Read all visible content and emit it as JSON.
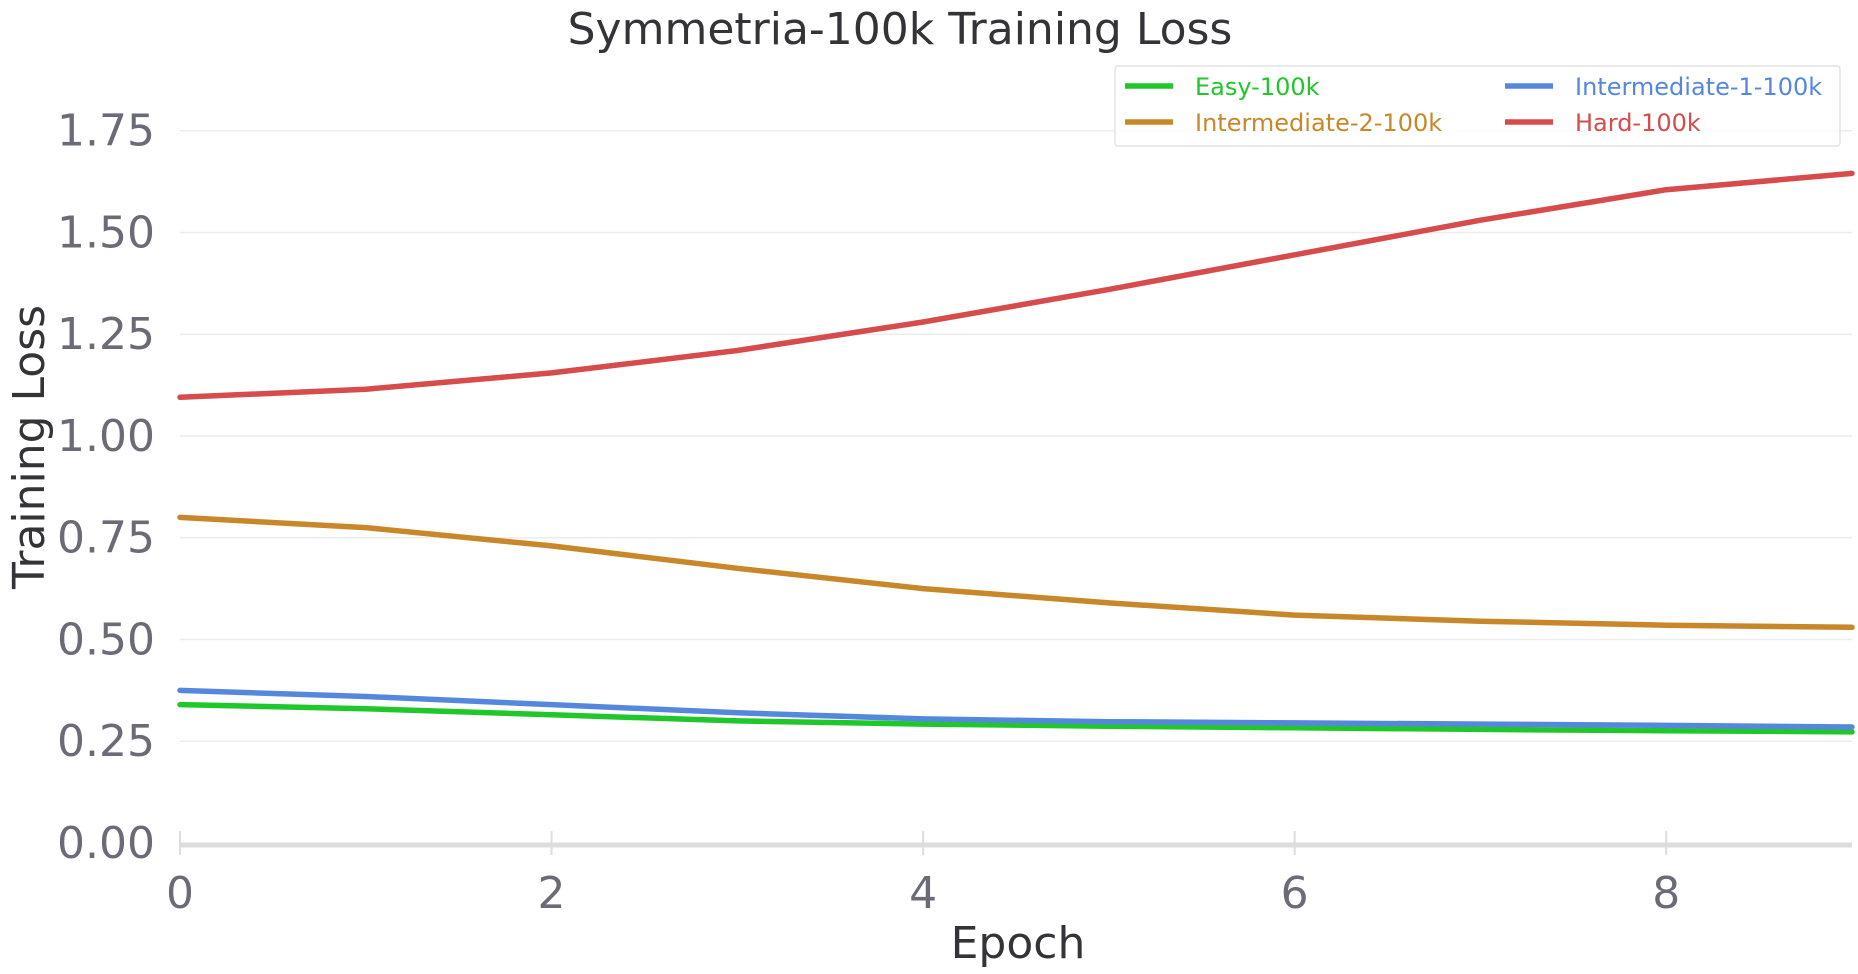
{
  "chart_data": {
    "type": "line",
    "title": "Symmetria-100k Training Loss",
    "xlabel": "Epoch",
    "ylabel": "Training Loss",
    "xlim": [
      0,
      9
    ],
    "ylim": [
      0,
      1.85
    ],
    "xticks": [
      0,
      2,
      4,
      6,
      8
    ],
    "xtick_labels": [
      "0",
      "2",
      "4",
      "6",
      "8"
    ],
    "yticks": [
      0,
      0.25,
      0.5,
      0.75,
      1.0,
      1.25,
      1.5,
      1.75
    ],
    "ytick_labels": [
      "0.00",
      "0.25",
      "0.50",
      "0.75",
      "1.00",
      "1.25",
      "1.50",
      "1.75"
    ],
    "grid": true,
    "legend_position": "top-right",
    "x": [
      0,
      1,
      2,
      3,
      4,
      5,
      6,
      7,
      8,
      9
    ],
    "series": [
      {
        "name": "Easy-100k",
        "color": "#1fc72a",
        "values": [
          0.34,
          0.33,
          0.315,
          0.3,
          0.292,
          0.287,
          0.283,
          0.279,
          0.276,
          0.273
        ]
      },
      {
        "name": "Intermediate-1-100k",
        "color": "#5588dd",
        "values": [
          0.375,
          0.36,
          0.34,
          0.32,
          0.305,
          0.298,
          0.295,
          0.292,
          0.289,
          0.285
        ]
      },
      {
        "name": "Intermediate-2-100k",
        "color": "#c8882a",
        "values": [
          0.8,
          0.775,
          0.73,
          0.675,
          0.625,
          0.59,
          0.56,
          0.545,
          0.535,
          0.53
        ]
      },
      {
        "name": "Hard-100k",
        "color": "#d64b4b",
        "values": [
          1.095,
          1.115,
          1.155,
          1.21,
          1.28,
          1.36,
          1.445,
          1.53,
          1.605,
          1.645
        ]
      }
    ]
  }
}
